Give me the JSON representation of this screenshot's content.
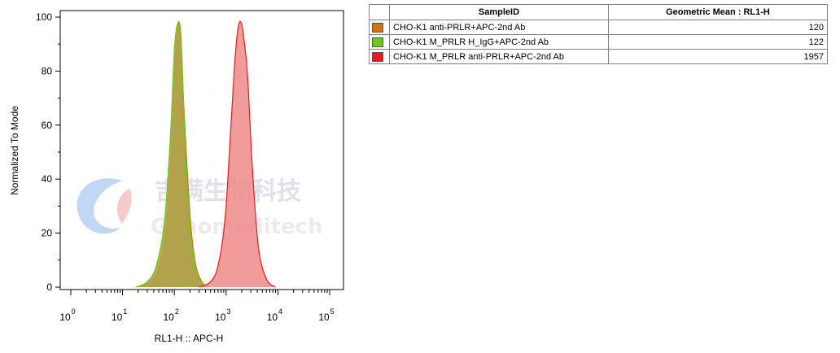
{
  "chart_data": {
    "type": "area",
    "xlabel": "RL1-H :: APC-H",
    "ylabel": "Normalized To Mode",
    "x_scale": "log",
    "xlim": [
      1,
      100000
    ],
    "ylim": [
      0,
      100
    ],
    "x_ticks": [
      {
        "base": "10",
        "exp": "0"
      },
      {
        "base": "10",
        "exp": "1"
      },
      {
        "base": "10",
        "exp": "2"
      },
      {
        "base": "10",
        "exp": "3"
      },
      {
        "base": "10",
        "exp": "4"
      },
      {
        "base": "10",
        "exp": "5"
      }
    ],
    "y_ticks": [
      "0",
      "20",
      "40",
      "60",
      "80",
      "100"
    ],
    "series": [
      {
        "name": "CHO-K1 anti-PRLR+APC-2nd Ab",
        "color": "#d4700e",
        "fill": "#b3a14a",
        "x": [
          20,
          35,
          50,
          70,
          90,
          105,
          120,
          135,
          150,
          175,
          210,
          260,
          340,
          460
        ],
        "y": [
          0,
          2,
          7,
          22,
          55,
          85,
          98,
          92,
          70,
          45,
          22,
          8,
          2,
          0
        ]
      },
      {
        "name": "CHO-K1 M_PRLR H_IgG+APC-2nd Ab",
        "color": "#66cc1a",
        "fill": "#b3a14a",
        "x": [
          18,
          30,
          45,
          65,
          85,
          100,
          118,
          135,
          150,
          170,
          200,
          250,
          330,
          450
        ],
        "y": [
          0,
          2,
          8,
          25,
          58,
          88,
          98,
          90,
          68,
          42,
          20,
          7,
          2,
          0
        ]
      },
      {
        "name": "CHO-K1 M_PRLR anti-PRLR+APC-2nd Ab",
        "color": "#e8191a",
        "fill": "#ef8a8a",
        "x": [
          300,
          500,
          700,
          950,
          1200,
          1450,
          1700,
          1957,
          2200,
          2600,
          3200,
          4200,
          6000,
          9000
        ],
        "y": [
          0,
          2,
          8,
          25,
          55,
          82,
          96,
          98,
          92,
          78,
          45,
          15,
          3,
          0
        ]
      }
    ]
  },
  "legend_table": {
    "headers": [
      "SampleID",
      "Geometric Mean : RL1-H"
    ],
    "rows": [
      {
        "color": "#d4700e",
        "sample": "CHO-K1 anti-PRLR+APC-2nd Ab",
        "value": "120"
      },
      {
        "color": "#66cc1a",
        "sample": "CHO-K1 M_PRLR H_IgG+APC-2nd Ab",
        "value": "122"
      },
      {
        "color": "#e8191a",
        "sample": "CHO-K1 M_PRLR anti-PRLR+APC-2nd Ab",
        "value": "1957"
      }
    ]
  },
  "watermark": {
    "cn": "吉满生物科技",
    "en": "Genomeditech"
  }
}
